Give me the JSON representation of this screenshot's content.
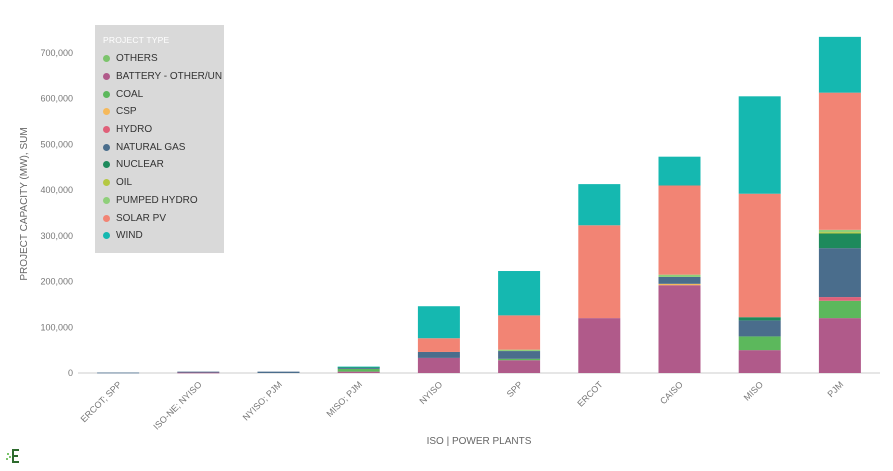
{
  "chart_data": {
    "type": "bar",
    "stacked": true,
    "xlabel": "ISO | POWER PLANTS",
    "ylabel": "PROJECT CAPACITY (MW), SUM",
    "ylim": [
      0,
      750000
    ],
    "yticks": [
      "0",
      "100,000",
      "200,000",
      "300,000",
      "400,000",
      "500,000",
      "600,000",
      "700,000"
    ],
    "yticks_values": [
      0,
      100000,
      200000,
      300000,
      400000,
      500000,
      600000,
      700000
    ],
    "grid": false,
    "legend_title": "PROJECT TYPE",
    "legend_position": "top-left",
    "categories": [
      "ERCOT; SPP",
      "ISO-NE; NYISO",
      "NYISO; PJM",
      "MISO; PJM",
      "NYISO",
      "SPP",
      "ERCOT",
      "CAISO",
      "MISO",
      "PJM"
    ],
    "series": [
      {
        "name": "BATTERY - OTHER/UN",
        "color": "#b05a8a",
        "values": [
          0,
          1000,
          0,
          3000,
          33000,
          28000,
          120000,
          192000,
          50000,
          120000
        ]
      },
      {
        "name": "OTHERS",
        "color": "#7cc46c",
        "values": [
          0,
          0,
          0,
          0,
          0,
          0,
          0,
          0,
          0,
          0
        ]
      },
      {
        "name": "COAL",
        "color": "#5cb85c",
        "values": [
          0,
          0,
          0,
          6000,
          0,
          3000,
          0,
          0,
          30000,
          38000
        ]
      },
      {
        "name": "CSP",
        "color": "#f5b95b",
        "values": [
          0,
          0,
          0,
          0,
          0,
          0,
          0,
          3000,
          0,
          0
        ]
      },
      {
        "name": "HYDRO",
        "color": "#e06079",
        "values": [
          0,
          0,
          0,
          0,
          0,
          0,
          0,
          0,
          0,
          8000
        ]
      },
      {
        "name": "NATURAL GAS",
        "color": "#4a6d8c",
        "values": [
          1000,
          2000,
          3000,
          2000,
          13000,
          17000,
          0,
          15000,
          35000,
          107000
        ]
      },
      {
        "name": "NUCLEAR",
        "color": "#1e8a5c",
        "values": [
          0,
          0,
          0,
          2000,
          0,
          0,
          0,
          0,
          7000,
          32000
        ]
      },
      {
        "name": "OIL",
        "color": "#b5c842",
        "values": [
          0,
          0,
          0,
          0,
          0,
          0,
          0,
          0,
          0,
          3000
        ]
      },
      {
        "name": "PUMPED HYDRO",
        "color": "#8fcf7a",
        "values": [
          0,
          0,
          0,
          0,
          0,
          3000,
          0,
          5000,
          0,
          5000
        ]
      },
      {
        "name": "SOLAR PV",
        "color": "#f28474",
        "values": [
          0,
          0,
          0,
          0,
          30000,
          75000,
          203000,
          195000,
          270000,
          300000
        ]
      },
      {
        "name": "WIND",
        "color": "#15b8b0",
        "values": [
          0,
          0,
          0,
          1000,
          70000,
          97000,
          90000,
          63000,
          213000,
          122000
        ]
      }
    ]
  },
  "legend": {
    "title": "PROJECT TYPE",
    "items": [
      {
        "label": "OTHERS",
        "color": "#7cc46c"
      },
      {
        "label": "BATTERY - OTHER/UN",
        "color": "#b05a8a"
      },
      {
        "label": "COAL",
        "color": "#5cb85c"
      },
      {
        "label": "CSP",
        "color": "#f5b95b"
      },
      {
        "label": "HYDRO",
        "color": "#e06079"
      },
      {
        "label": "NATURAL GAS",
        "color": "#4a6d8c"
      },
      {
        "label": "NUCLEAR",
        "color": "#1e8a5c"
      },
      {
        "label": "OIL",
        "color": "#b5c842"
      },
      {
        "label": "PUMPED HYDRO",
        "color": "#8fcf7a"
      },
      {
        "label": "SOLAR PV",
        "color": "#f28474"
      },
      {
        "label": "WIND",
        "color": "#15b8b0"
      }
    ]
  },
  "branding": {
    "logo_icon": "brand-logo-icon",
    "logo_color": "#2e6b2e"
  }
}
